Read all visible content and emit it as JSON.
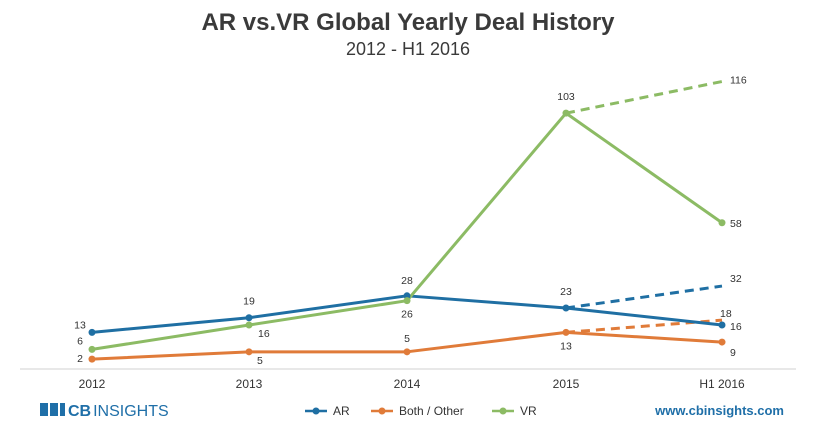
{
  "chart_data": {
    "type": "line",
    "title": "AR vs.VR Global Yearly Deal History",
    "subtitle": "2012 - H1 2016",
    "categories": [
      "2012",
      "2013",
      "2014",
      "2015",
      "H1 2016"
    ],
    "xlabel": "",
    "ylabel": "",
    "ylim": [
      0,
      120
    ],
    "grid": false,
    "legend_position": "bottom",
    "series": [
      {
        "name": "AR",
        "color": "#1f6fa3",
        "values": [
          13,
          19,
          28,
          23,
          16
        ],
        "projected": {
          "from": "2015",
          "to": "H1 2016",
          "values": [
            23,
            32
          ]
        }
      },
      {
        "name": "Both / Other",
        "color": "#e07b39",
        "values": [
          2,
          5,
          5,
          13,
          9
        ],
        "projected": {
          "from": "2015",
          "to": "H1 2016",
          "values": [
            13,
            18
          ]
        }
      },
      {
        "name": "VR",
        "color": "#8cbb64",
        "values": [
          6,
          16,
          26,
          103,
          58
        ],
        "projected": {
          "from": "2015",
          "to": "H1 2016",
          "values": [
            103,
            116
          ]
        }
      }
    ]
  },
  "footer": {
    "logo_cb": "CB",
    "logo_insights": "INSIGHTS",
    "website": "www.cbinsights.com",
    "brand_color": "#1f6fa8"
  }
}
